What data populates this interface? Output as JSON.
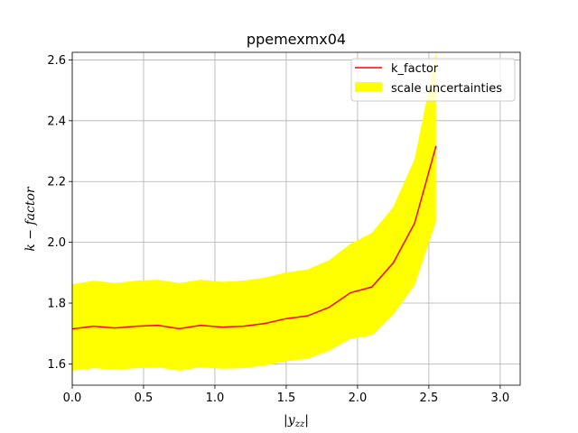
{
  "chart_data": {
    "type": "line",
    "title": "ppemexmx04",
    "xlabel": "|y_zz|",
    "ylabel": "k − factor",
    "xlim": [
      0.0,
      3.14
    ],
    "ylim": [
      1.53,
      2.625
    ],
    "xticks": [
      "0.0",
      "0.5",
      "1.0",
      "1.5",
      "2.0",
      "2.5",
      "3.0"
    ],
    "xtick_values": [
      0.0,
      0.5,
      1.0,
      1.5,
      2.0,
      2.5,
      3.0
    ],
    "yticks": [
      "1.6",
      "1.8",
      "2.0",
      "2.2",
      "2.4",
      "2.6"
    ],
    "ytick_values": [
      1.6,
      1.8,
      2.0,
      2.2,
      2.4,
      2.6
    ],
    "grid": true,
    "legend_position": "top-right",
    "x": [
      0.0,
      0.15,
      0.3,
      0.45,
      0.6,
      0.75,
      0.9,
      1.05,
      1.2,
      1.35,
      1.5,
      1.65,
      1.8,
      1.95,
      2.1,
      2.25,
      2.4,
      2.55
    ],
    "series": [
      {
        "name": "k_factor",
        "color": "#ff0000",
        "values": [
          1.715,
          1.724,
          1.718,
          1.724,
          1.727,
          1.716,
          1.727,
          1.721,
          1.724,
          1.733,
          1.749,
          1.758,
          1.786,
          1.834,
          1.853,
          1.932,
          2.063,
          2.317
        ]
      },
      {
        "name": "scale uncertainties",
        "color": "#ffff00",
        "type": "band",
        "upper": [
          1.862,
          1.874,
          1.866,
          1.874,
          1.877,
          1.866,
          1.877,
          1.87,
          1.874,
          1.884,
          1.901,
          1.911,
          1.941,
          1.995,
          2.031,
          2.116,
          2.274,
          2.622
        ],
        "lower": [
          1.578,
          1.586,
          1.581,
          1.586,
          1.589,
          1.578,
          1.589,
          1.584,
          1.586,
          1.595,
          1.609,
          1.617,
          1.643,
          1.683,
          1.694,
          1.762,
          1.859,
          2.069
        ]
      }
    ]
  }
}
